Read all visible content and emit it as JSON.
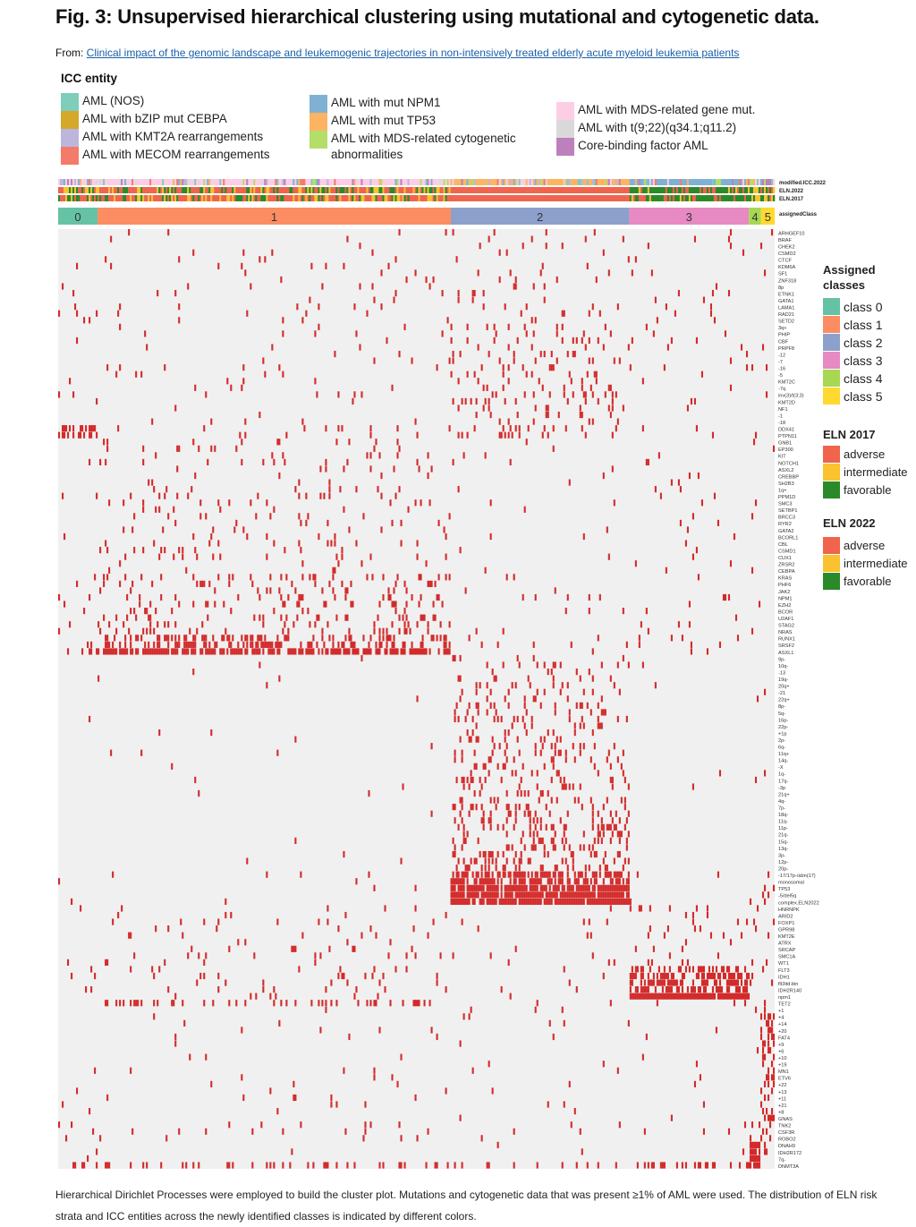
{
  "title": "Fig. 3: Unsupervised hierarchical clustering using mutational and cytogenetic data.",
  "from_label": "From: ",
  "from_link": "Clinical impact of the genomic landscape and leukemogenic trajectories in non-intensively treated elderly acute myeloid leukemia patients",
  "caption": "Hierarchical Dirichlet Processes were employed to build the cluster plot. Mutations and cytogenetic data that was present ≥1% of AML were used. The distribution of ELN risk strata and ICC entities across the newly identified classes is indicated by different colors.",
  "icc_legend": {
    "title": "ICC entity",
    "columns": [
      [
        {
          "label": "AML (NOS)",
          "color": "#7fcdbb"
        },
        {
          "label": "AML with bZIP mut CEBPA",
          "color": "#d4a82a"
        },
        {
          "label": "AML with KMT2A rearrangements",
          "color": "#bcb6dc"
        },
        {
          "label": "AML with MECOM rearrangements",
          "color": "#f47a6a"
        }
      ],
      [
        {
          "label": "AML with mut NPM1",
          "color": "#80b1d3"
        },
        {
          "label": "AML with mut TP53",
          "color": "#fdb462"
        },
        {
          "label": "AML with MDS-related cytogenetic abnormalities",
          "color": "#b3de69"
        }
      ],
      [
        {
          "label": "AML with MDS-related gene mut.",
          "color": "#fccde5"
        },
        {
          "label": "AML with t(9;22)(q34.1;q11.2)",
          "color": "#d9d9d9"
        },
        {
          "label": "Core-binding factor AML",
          "color": "#bc80bd"
        }
      ]
    ]
  },
  "annotation_tracks": [
    "modified.ICC.2022",
    "ELN.2022",
    "ELN.2017",
    "assignedClass"
  ],
  "class_bar": [
    {
      "label": "0",
      "color": "#66c2a5"
    },
    {
      "label": "1",
      "color": "#fc8d62"
    },
    {
      "label": "2",
      "color": "#8da0cb"
    },
    {
      "label": "3",
      "color": "#e78ac3"
    },
    {
      "label": "4",
      "color": "#a6d854"
    },
    {
      "label": "5",
      "color": "#ffd92f"
    }
  ],
  "row_labels": [
    "ARHGEF10",
    "BRAF",
    "CHEK2",
    "CSMD2",
    "CTCF",
    "KDM6A",
    "SF1",
    "ZNF318",
    "8p",
    "ETNK1",
    "GATA1",
    "LAMA1",
    "RAD21",
    "SETD2",
    "3q+",
    "PHIP",
    "CBF",
    "PRPF8",
    "-12",
    "-7",
    "-16",
    "-5",
    "KMT2C",
    "-7q",
    "inv(3)/t(3;3)",
    "KMT2D",
    "NF1",
    "-1",
    "-18",
    "DDX41",
    "PTPN11",
    "GNB1",
    "EP300",
    "KIT",
    "NOTCH1",
    "ASXL2",
    "CREBBP",
    "SH2B3",
    "1q+",
    "PPM1D",
    "SMC3",
    "SETBP1",
    "BRCC3",
    "RYR2",
    "GATA2",
    "BCORL1",
    "CBL",
    "CSMD1",
    "CUX1",
    "ZRSR2",
    "CEBPA",
    "KRAS",
    "PHF6",
    "JAK2",
    "NPM1",
    "EZH2",
    "BCOR",
    "U2AF1",
    "STAG2",
    "NRAS",
    "RUNX1",
    "SRSF2",
    "ASXL1",
    "9p-",
    "10q-",
    "-13",
    "19q-",
    "20q+",
    "-21",
    "22q+",
    "8p-",
    "5q-",
    "16p-",
    "22p-",
    "+1p",
    "2p-",
    "6q-",
    "11q+",
    "14q-",
    "-X",
    "1q-",
    "17q-",
    "-3p",
    "21q+",
    "4q-",
    "7p-",
    "18q-",
    "11q-",
    "11p-",
    "21q-",
    "15q-",
    "13q-",
    "3p-",
    "12p-",
    "20p-",
    "-17/17p-/abn(17)",
    "monosomal",
    "TP53",
    "-5/del5q",
    "complex.ELN2022",
    "HNRNPK",
    "ARID2",
    "FOXP1",
    "GPR98",
    "KMT2E",
    "ATRX",
    "SRCAP",
    "SMC1A",
    "WT1",
    "FLT3",
    "IDH1",
    "flt3itd.bin",
    "IDH2R140",
    "npm1",
    "TET2",
    "+1",
    "+4",
    "+14",
    "+20",
    "FAT4",
    "+9",
    "+6",
    "+10",
    "+19",
    "MN1",
    "ETV6",
    "+22",
    "+13",
    "+11",
    "+21",
    "+8",
    "GNAS",
    "TNK2",
    "CSF3R",
    "ROBO2",
    "DNAH9",
    "IDH2R172",
    "7q-",
    "DNMT3A"
  ],
  "side_legend": {
    "assigned": {
      "title_line1": "Assigned",
      "title_line2": "classes",
      "items": [
        {
          "label": "class 0",
          "color": "#66c2a5"
        },
        {
          "label": "class 1",
          "color": "#fc8d62"
        },
        {
          "label": "class 2",
          "color": "#8da0cb"
        },
        {
          "label": "class 3",
          "color": "#e78ac3"
        },
        {
          "label": "class 4",
          "color": "#a6d854"
        },
        {
          "label": "class 5",
          "color": "#ffd92f"
        }
      ]
    },
    "eln2017": {
      "title": "ELN 2017",
      "items": [
        {
          "label": "adverse",
          "color": "#f0644e"
        },
        {
          "label": "intermediate",
          "color": "#f9c22e"
        },
        {
          "label": "favorable",
          "color": "#2a8a2a"
        }
      ]
    },
    "eln2022": {
      "title": "ELN 2022",
      "items": [
        {
          "label": "adverse",
          "color": "#f0644e"
        },
        {
          "label": "intermediate",
          "color": "#f9c22e"
        },
        {
          "label": "favorable",
          "color": "#2a8a2a"
        }
      ]
    }
  },
  "heatmap_colors": {
    "background": "#f0f0f0",
    "mutated": "#d32a2a"
  }
}
